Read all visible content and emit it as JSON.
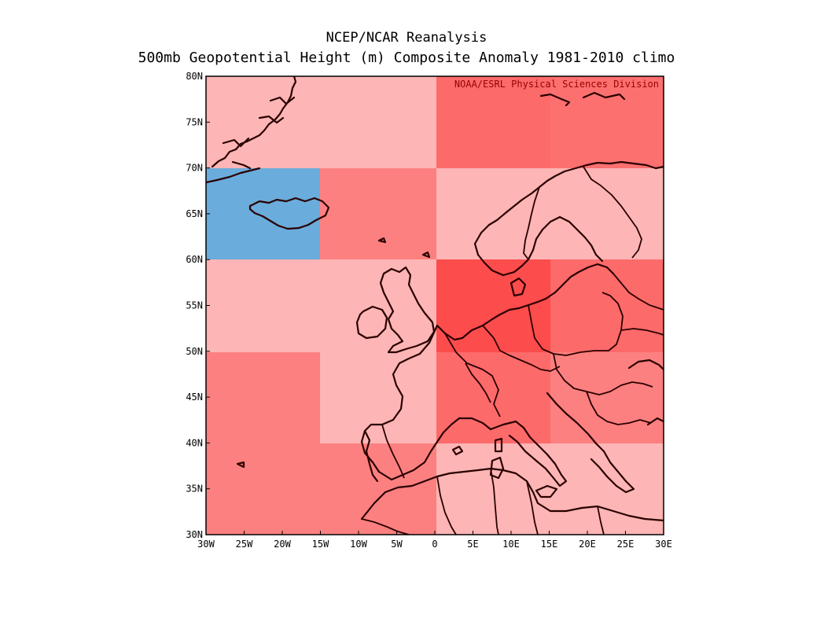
{
  "title": "NCEP/NCAR Reanalysis",
  "subtitle": "500mb Geopotential Height (m) Composite Anomaly 1981-2010 climo",
  "credit": "NOAA/ESRL Physical Sciences Division",
  "x_ticks": [
    "30W",
    "25W",
    "20W",
    "15W",
    "10W",
    "5W",
    "0",
    "5E",
    "10E",
    "15E",
    "20E",
    "25E",
    "30E"
  ],
  "y_ticks": [
    "80N",
    "75N",
    "70N",
    "65N",
    "60N",
    "55N",
    "50N",
    "45N",
    "40N",
    "35N",
    "30N"
  ],
  "colors": {
    "light_pink": "#fdb5b5",
    "salmon": "#fd8080",
    "medium_red": "#fd6a6a",
    "deep_red": "#fc4c4c",
    "blue": "#6aacdc",
    "coastline": "#2a0000"
  }
}
